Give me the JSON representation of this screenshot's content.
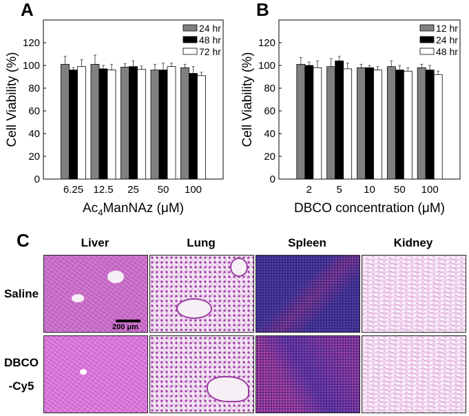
{
  "panels": {
    "a": "A",
    "b": "B",
    "c": "C"
  },
  "chart_data": [
    {
      "type": "bar",
      "panel": "A",
      "categories": [
        "6.25",
        "12.5",
        "25",
        "50",
        "100"
      ],
      "xlabel_parts": {
        "prefix": "Ac",
        "sub": "4",
        "suffix": "ManNAz (μM)"
      },
      "ylabel": "Cell Viability (%)",
      "ylim": [
        0,
        140
      ],
      "yticks": [
        0,
        20,
        40,
        60,
        80,
        100,
        120
      ],
      "legend_position": "top-right",
      "grid": false,
      "series": [
        {
          "name": "24 hr",
          "color": "#808080",
          "values": [
            101,
            101,
            98.5,
            96,
            98
          ],
          "errors": [
            7,
            8,
            3,
            5,
            3
          ]
        },
        {
          "name": "48 hr",
          "color": "#000000",
          "values": [
            96,
            97,
            99,
            96,
            93
          ],
          "errors": [
            2,
            3,
            5,
            6,
            6
          ]
        },
        {
          "name": "72 hr",
          "color": "#ffffff",
          "values": [
            99,
            96,
            96.5,
            99,
            91
          ],
          "errors": [
            6,
            5,
            3,
            3,
            3
          ]
        }
      ]
    },
    {
      "type": "bar",
      "panel": "B",
      "categories": [
        "2",
        "5",
        "10",
        "50",
        "100"
      ],
      "xlabel": "DBCO concentration (μM)",
      "ylabel": "Cell Viability (%)",
      "ylim": [
        0,
        140
      ],
      "yticks": [
        0,
        20,
        40,
        60,
        80,
        100,
        120
      ],
      "legend_position": "top-right",
      "grid": false,
      "series": [
        {
          "name": "12 hr",
          "color": "#808080",
          "values": [
            101,
            99,
            98,
            99,
            98
          ],
          "errors": [
            6,
            7,
            3,
            5,
            3
          ]
        },
        {
          "name": "24 hr",
          "color": "#000000",
          "values": [
            100,
            104,
            98,
            96,
            96
          ],
          "errors": [
            3,
            4,
            2,
            4,
            4
          ]
        },
        {
          "name": "48 hr",
          "color": "#ffffff",
          "values": [
            98,
            97,
            96,
            95,
            92
          ],
          "errors": [
            6,
            5,
            3,
            3,
            3
          ]
        }
      ]
    }
  ],
  "histology": {
    "columns": [
      "Liver",
      "Lung",
      "Spleen",
      "Kidney"
    ],
    "rows": [
      "Saline",
      "DBCO",
      "-Cy5"
    ],
    "scale_bar": "200 μm"
  }
}
